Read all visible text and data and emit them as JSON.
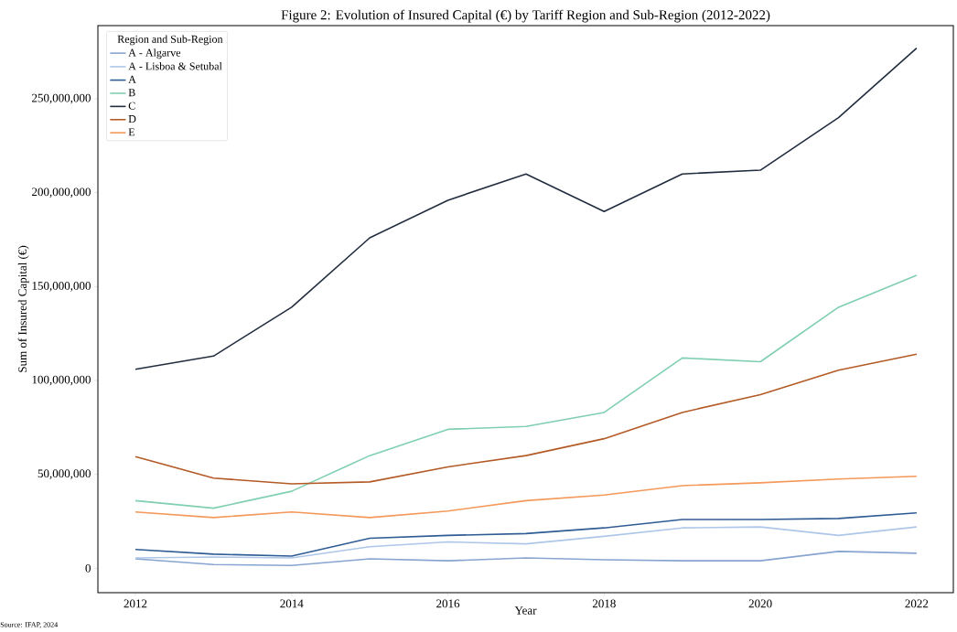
{
  "chart_data": {
    "type": "line",
    "title": "Figure 2: Evolution of Insured Capital (€) by Tariff Region and Sub-Region (2012-2022)",
    "xlabel": "Year",
    "ylabel": "Sum of Insured Capital (€)",
    "legend_title": "Region and Sub-Region",
    "annotations": [
      "Source: IFAP, 2024"
    ],
    "x": [
      2012,
      2013,
      2014,
      2015,
      2016,
      2017,
      2018,
      2019,
      2020,
      2021,
      2022
    ],
    "series": [
      {
        "name": "A - Algarve",
        "color": "#88a4d0",
        "values": [
          5000000,
          2000000,
          1500000,
          5000000,
          4000000,
          5500000,
          4500000,
          4000000,
          4000000,
          9000000,
          8000000
        ]
      },
      {
        "name": "A - Lisboa & Setubal",
        "color": "#aec7e8",
        "values": [
          5500000,
          6000000,
          5500000,
          11500000,
          14000000,
          13000000,
          17000000,
          21500000,
          22000000,
          17500000,
          22000000
        ]
      },
      {
        "name": "A",
        "color": "#2f5c94",
        "values": [
          10000000,
          7500000,
          6500000,
          16000000,
          17500000,
          18500000,
          21500000,
          26000000,
          26000000,
          26500000,
          29500000
        ]
      },
      {
        "name": "B",
        "color": "#7fcfb0",
        "values": [
          36000000,
          32000000,
          41000000,
          60000000,
          74000000,
          75500000,
          83000000,
          112000000,
          110000000,
          139000000,
          156000000
        ]
      },
      {
        "name": "C",
        "color": "#222d3f",
        "values": [
          106000000,
          113000000,
          139000000,
          176000000,
          196000000,
          210000000,
          190000000,
          210000000,
          212000000,
          240000000,
          277000000
        ]
      },
      {
        "name": "D",
        "color": "#b35a26",
        "values": [
          59500000,
          48000000,
          45000000,
          46000000,
          54000000,
          60000000,
          69000000,
          83000000,
          92500000,
          105500000,
          114000000
        ]
      },
      {
        "name": "E",
        "color": "#f4995a",
        "values": [
          30000000,
          27000000,
          30000000,
          27000000,
          30500000,
          36000000,
          39000000,
          44000000,
          45500000,
          47500000,
          49000000
        ]
      }
    ],
    "xlim": [
      2011.52,
      2022.47
    ],
    "ylim": [
      -13000000,
      289000000
    ],
    "xticks": [
      2012,
      2014,
      2016,
      2018,
      2020,
      2022
    ],
    "yticks": [
      0,
      {
        "value": 50000000,
        "label": "50,000,000"
      },
      {
        "value": 100000000,
        "label": "100,000,000"
      },
      {
        "value": 150000000,
        "label": "150,000,000"
      },
      {
        "value": 200000000,
        "label": "200,000,000"
      },
      {
        "value": 250000000,
        "label": "250,000,000"
      }
    ],
    "grid": false,
    "legend": "top left",
    "marker": "none",
    "line_style": "solid"
  }
}
